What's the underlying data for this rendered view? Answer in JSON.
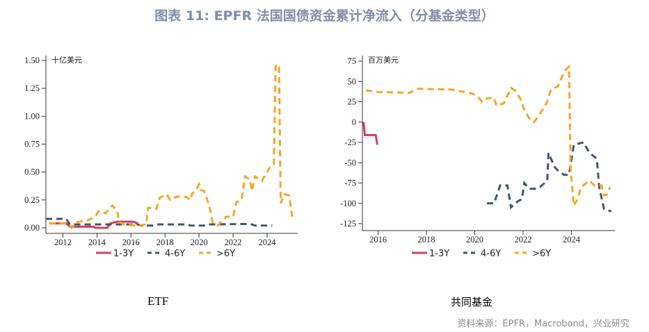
{
  "title": "图表 11: EPFR 法国国债资金累计净流入（分基金类型）",
  "source": "资料来源：EPFR，Macrobond，兴业研究",
  "colors": {
    "1-3Y": "#d0405a",
    "4-6Y": "#44546a",
    "6Y+": "#f5a623"
  },
  "chart_data": [
    {
      "type": "line",
      "subtitle": "ETF",
      "unit": "十亿美元",
      "ylim": [
        0,
        1.5
      ],
      "yticks": [
        "0.00",
        "0.25",
        "0.50",
        "0.75",
        "1.00",
        "1.25",
        "1.50"
      ],
      "xticks": [
        "2012",
        "2014",
        "2016",
        "2018",
        "2020",
        "2022",
        "2024"
      ],
      "xlim": [
        2011,
        2025.8
      ],
      "legend": "bottom",
      "series": [
        {
          "name": "1-3Y",
          "style": "solid",
          "points": [
            [
              2011.2,
              0.04
            ],
            [
              2012.2,
              0.04
            ],
            [
              2012.4,
              0.01
            ],
            [
              2013.8,
              0.01
            ],
            [
              2013.9,
              0
            ],
            [
              2014.6,
              0
            ],
            [
              2014.8,
              0.04
            ],
            [
              2015.2,
              0.055
            ],
            [
              2016.1,
              0.055
            ],
            [
              2016.4,
              0.04
            ]
          ]
        },
        {
          "name": "4-6Y",
          "style": "dash",
          "points": [
            [
              2011,
              0.08
            ],
            [
              2012.2,
              0.08
            ],
            [
              2012.4,
              0.03
            ],
            [
              2016.4,
              0.03
            ],
            [
              2016.6,
              0.02
            ],
            [
              2017.3,
              0.02
            ],
            [
              2017.5,
              0.03
            ],
            [
              2019.3,
              0.03
            ],
            [
              2019.5,
              0.02
            ],
            [
              2020.3,
              0.02
            ],
            [
              2020.5,
              0.03
            ],
            [
              2023,
              0.035
            ],
            [
              2023.3,
              0.02
            ],
            [
              2024.3,
              0.02
            ]
          ]
        },
        {
          "name": ">6Y",
          "style": "dash",
          "points": [
            [
              2011.2,
              0.04
            ],
            [
              2012.2,
              0.04
            ],
            [
              2012.5,
              0
            ],
            [
              2012.8,
              0.05
            ],
            [
              2013.5,
              0.07
            ],
            [
              2013.9,
              0.1
            ],
            [
              2014.1,
              0.15
            ],
            [
              2014.5,
              0.13
            ],
            [
              2014.9,
              0.2
            ],
            [
              2015.2,
              0.15
            ],
            [
              2015.3,
              0.05
            ],
            [
              2015.6,
              0.03
            ],
            [
              2016.4,
              0.02
            ],
            [
              2016.9,
              0.03
            ],
            [
              2017,
              0.18
            ],
            [
              2017.5,
              0.17
            ],
            [
              2017.7,
              0.27
            ],
            [
              2018.1,
              0.3
            ],
            [
              2018.3,
              0.25
            ],
            [
              2018.7,
              0.28
            ],
            [
              2019.2,
              0.28
            ],
            [
              2019.5,
              0.25
            ],
            [
              2019.6,
              0.31
            ],
            [
              2019.8,
              0.33
            ],
            [
              2020,
              0.39
            ],
            [
              2020.1,
              0.34
            ],
            [
              2020.3,
              0.33
            ],
            [
              2020.6,
              0.2
            ],
            [
              2020.8,
              0.05
            ],
            [
              2021.1,
              0.02
            ],
            [
              2021.6,
              0.1
            ],
            [
              2022,
              0.1
            ],
            [
              2022.2,
              0.23
            ],
            [
              2022.5,
              0.25
            ],
            [
              2022.7,
              0.46
            ],
            [
              2023,
              0.43
            ],
            [
              2023.1,
              0.33
            ],
            [
              2023.3,
              0.46
            ],
            [
              2023.7,
              0.42
            ],
            [
              2023.9,
              0.48
            ],
            [
              2024.2,
              0.55
            ],
            [
              2024.4,
              0.57
            ],
            [
              2024.5,
              1.45
            ],
            [
              2024.7,
              1.46
            ],
            [
              2024.8,
              0.22
            ],
            [
              2025,
              0.3
            ],
            [
              2025.3,
              0.29
            ],
            [
              2025.5,
              0.08
            ]
          ]
        }
      ]
    },
    {
      "type": "line",
      "subtitle": "共同基金",
      "unit": "百万美元",
      "ylim": [
        -133,
        80
      ],
      "yticks": [
        "-125",
        "-100",
        "-75",
        "-50",
        "-25",
        "0",
        "25",
        "50",
        "75"
      ],
      "xticks": [
        "2016",
        "2018",
        "2020",
        "2022",
        "2024"
      ],
      "xlim": [
        2015.35,
        2025.8
      ],
      "legend": "bottom",
      "series": [
        {
          "name": "1-3Y",
          "style": "solid",
          "points": [
            [
              2015.4,
              0
            ],
            [
              2015.45,
              -16
            ],
            [
              2015.9,
              -16
            ],
            [
              2015.97,
              -28
            ]
          ]
        },
        {
          "name": "4-6Y",
          "style": "dash",
          "points": [
            [
              2020.5,
              -100
            ],
            [
              2020.8,
              -100
            ],
            [
              2021.05,
              -78
            ],
            [
              2021.35,
              -78
            ],
            [
              2021.5,
              -105
            ],
            [
              2021.8,
              -97
            ],
            [
              2021.95,
              -95
            ],
            [
              2022.05,
              -75
            ],
            [
              2022.25,
              -82
            ],
            [
              2022.5,
              -82
            ],
            [
              2022.7,
              -80
            ],
            [
              2023,
              -72
            ],
            [
              2023.05,
              -38
            ],
            [
              2023.3,
              -55
            ],
            [
              2023.45,
              -60
            ],
            [
              2023.7,
              -65
            ],
            [
              2023.9,
              -65
            ],
            [
              2024.1,
              -28
            ],
            [
              2024.5,
              -25
            ],
            [
              2024.75,
              -38
            ],
            [
              2025.05,
              -45
            ],
            [
              2025.15,
              -80
            ],
            [
              2025.35,
              -107
            ],
            [
              2025.65,
              -110
            ]
          ]
        },
        {
          "name": ">6Y",
          "style": "dash",
          "points": [
            [
              2015.5,
              39
            ],
            [
              2016,
              37
            ],
            [
              2017.3,
              36
            ],
            [
              2017.6,
              41
            ],
            [
              2019.05,
              40
            ],
            [
              2019.55,
              37
            ],
            [
              2019.9,
              35
            ],
            [
              2020.1,
              32
            ],
            [
              2020.3,
              25
            ],
            [
              2020.5,
              29
            ],
            [
              2020.8,
              30
            ],
            [
              2020.9,
              20
            ],
            [
              2021.2,
              23
            ],
            [
              2021.5,
              42
            ],
            [
              2021.7,
              38
            ],
            [
              2021.9,
              28
            ],
            [
              2022.05,
              15
            ],
            [
              2022.25,
              5
            ],
            [
              2022.45,
              0
            ],
            [
              2022.65,
              8
            ],
            [
              2022.8,
              15
            ],
            [
              2023,
              25
            ],
            [
              2023.15,
              40
            ],
            [
              2023.45,
              44
            ],
            [
              2023.6,
              55
            ],
            [
              2023.75,
              64
            ],
            [
              2023.9,
              68
            ],
            [
              2023.97,
              -60
            ],
            [
              2024.1,
              -103
            ],
            [
              2024.25,
              -95
            ],
            [
              2024.4,
              -80
            ],
            [
              2024.75,
              -72
            ],
            [
              2024.95,
              -78
            ],
            [
              2025.25,
              -78
            ],
            [
              2025.35,
              -90
            ],
            [
              2025.45,
              -90
            ],
            [
              2025.6,
              -80
            ]
          ]
        }
      ]
    }
  ]
}
